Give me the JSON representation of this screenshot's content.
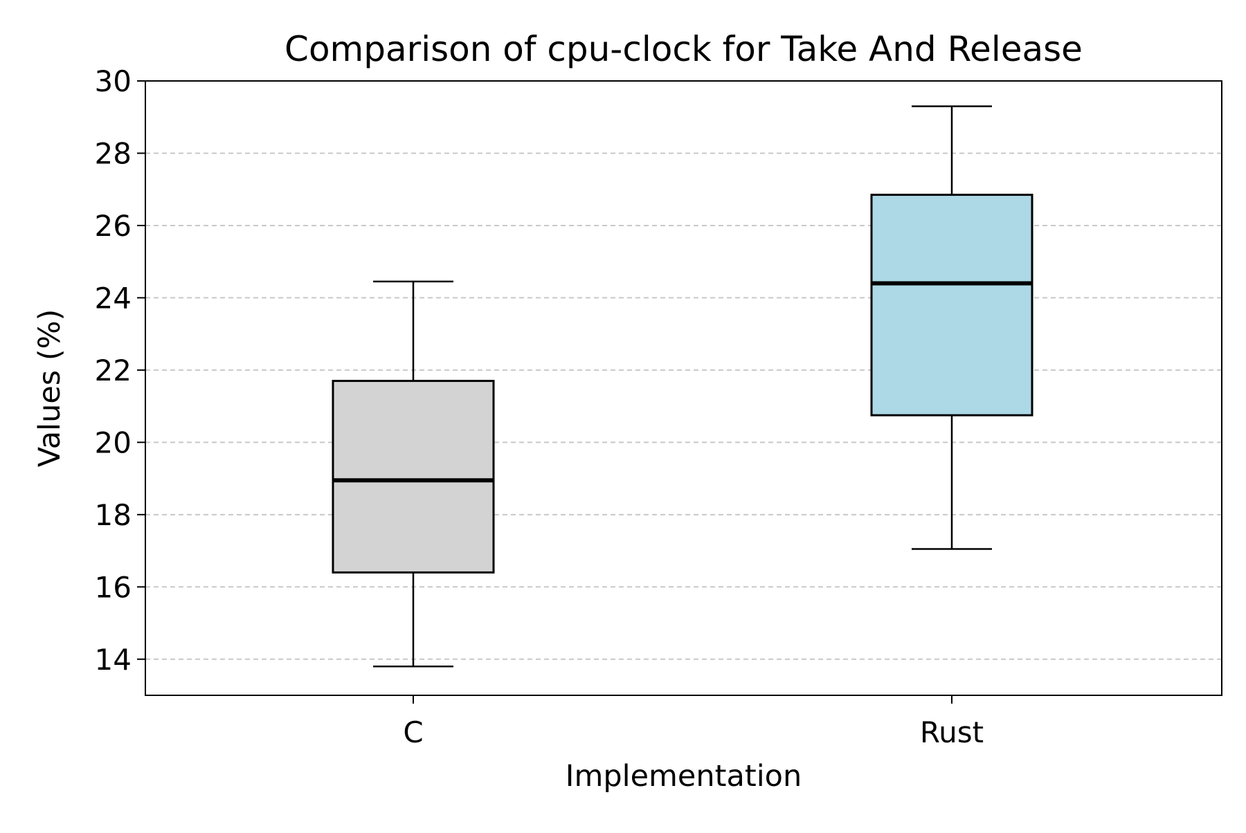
{
  "chart_data": {
    "type": "box",
    "title": "Comparison of cpu-clock for Take And Release",
    "xlabel": "Implementation",
    "ylabel": "Values (%)",
    "categories": [
      "C",
      "Rust"
    ],
    "ylim": [
      13.0,
      30.0
    ],
    "yticks": [
      14,
      16,
      18,
      20,
      22,
      24,
      26,
      28,
      30
    ],
    "grid": {
      "y": true,
      "x": false,
      "style": "dashed"
    },
    "boxes": [
      {
        "category": "C",
        "whisker_low": 13.8,
        "q1": 16.4,
        "median": 18.95,
        "q3": 21.7,
        "whisker_high": 24.45,
        "fill": "#d3d3d3"
      },
      {
        "category": "Rust",
        "whisker_low": 17.05,
        "q1": 20.75,
        "median": 24.4,
        "q3": 26.85,
        "whisker_high": 29.3,
        "fill": "#add8e6"
      }
    ]
  }
}
